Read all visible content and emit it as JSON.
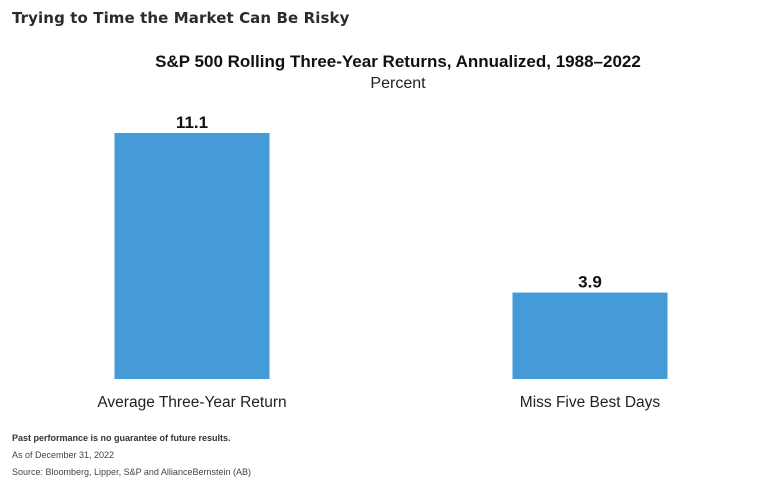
{
  "headline": "Trying to Time the Market Can Be Risky",
  "chart_data": {
    "type": "bar",
    "title": "S&P 500 Rolling Three-Year Returns, Annualized, 1988–2022",
    "subtitle": "Percent",
    "categories": [
      "Average Three-Year Return",
      "Miss Five Best Days"
    ],
    "values": [
      11.1,
      3.9
    ],
    "value_labels": [
      "11.1",
      "3.9"
    ],
    "xlabel": "",
    "ylabel": "",
    "ylim": [
      0,
      11.1
    ],
    "grid": false,
    "legend": "none",
    "bar_color": "#449bd8"
  },
  "footnotes": {
    "disclaimer": "Past performance is no guarantee of future results.",
    "as_of": "As of December 31, 2022",
    "source": "Source: Bloomberg, Lipper, S&P and AllianceBernstein (AB)"
  }
}
